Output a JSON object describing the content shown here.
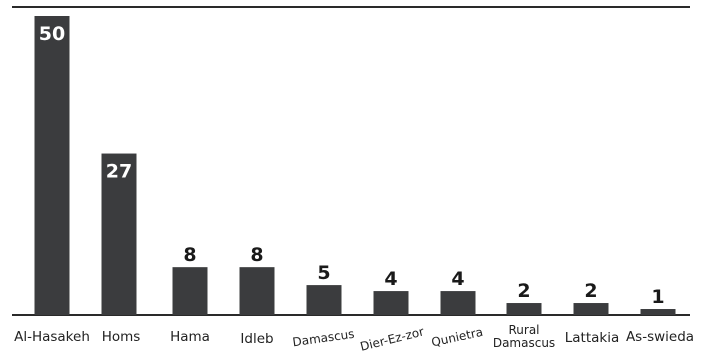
{
  "chart_data": {
    "type": "bar",
    "categories": [
      "Al-Hasakeh",
      "Homs",
      "Hama",
      "Idleb",
      "Damascus",
      "Dier-Ez-zor",
      "Qunietra",
      "Rural Damascus",
      "Lattakia",
      "As-swieda"
    ],
    "values": [
      50,
      27,
      8,
      8,
      5,
      4,
      4,
      2,
      2,
      1
    ],
    "value_labels": [
      "50",
      "27",
      "8",
      "8",
      "5",
      "4",
      "4",
      "2",
      "2",
      "1"
    ],
    "title": "",
    "xlabel": "",
    "ylabel": "",
    "ylim": [
      0,
      50
    ],
    "grid": false,
    "legend": "none",
    "colors": {
      "bar": "#3b3c3e",
      "label_inside": "#ffffff",
      "label_outside": "#1a1a1a"
    }
  }
}
